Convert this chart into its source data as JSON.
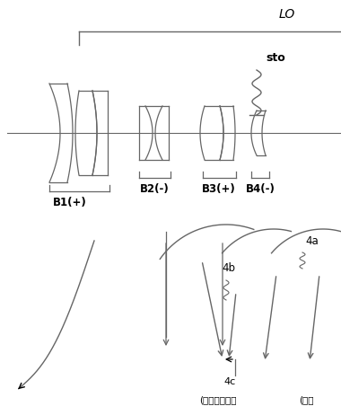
{
  "bg_color": "#ffffff",
  "line_color": "#666666",
  "text_color": "#000000",
  "fig_width": 3.8,
  "fig_height": 4.62,
  "dpi": 100,
  "labels": {
    "B1": "B1(+)",
    "B2": "B2(-)",
    "B3": "B3(+)",
    "B4": "B4(-)",
    "sto": "sto",
    "LO": "LO",
    "4a": "4a",
    "4b": "4b",
    "4c": "4c",
    "focus_jp": "(フォーカス）",
    "focus_jp2": "(フォ"
  }
}
